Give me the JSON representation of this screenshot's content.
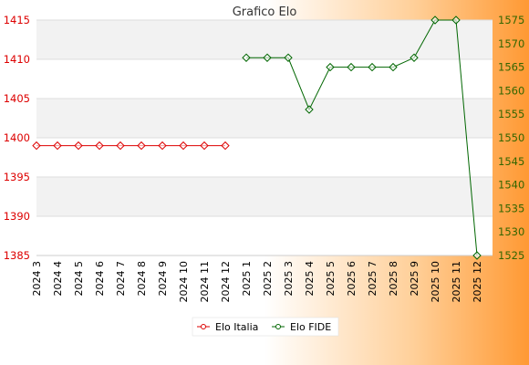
{
  "chart_data": {
    "type": "line",
    "title": "Grafico Elo",
    "categories": [
      "2024 3",
      "2024 4",
      "2024 5",
      "2024 6",
      "2024 7",
      "2024 8",
      "2024 9",
      "2024 10",
      "2024 11",
      "2024 12",
      "2025 1",
      "2025 2",
      "2025 3",
      "2025 4",
      "2025 5",
      "2025 6",
      "2025 7",
      "2025 8",
      "2025 9",
      "2025 10",
      "2025 11",
      "2025 12"
    ],
    "left_axis": {
      "min": 1385,
      "max": 1415,
      "ticks": [
        "1385",
        "1390",
        "1395",
        "1400",
        "1405",
        "1410",
        "1415"
      ],
      "color": "#dd0000"
    },
    "right_axis": {
      "min": 1525,
      "max": 1575,
      "ticks": [
        "1525",
        "1530",
        "1535",
        "1540",
        "1545",
        "1550",
        "1555",
        "1560",
        "1565",
        "1570",
        "1575"
      ],
      "color": "#336600"
    },
    "grid": true,
    "legend_placement": "bottom-center",
    "series": [
      {
        "name": "Elo Italia",
        "axis": "left",
        "color": "#dd0000",
        "values": [
          1399,
          1399,
          1399,
          1399,
          1399,
          1399,
          1399,
          1399,
          1399,
          1399,
          null,
          null,
          null,
          null,
          null,
          null,
          null,
          null,
          null,
          null,
          null,
          null
        ]
      },
      {
        "name": "Elo FIDE",
        "axis": "right",
        "color": "#006600",
        "values": [
          null,
          null,
          null,
          null,
          null,
          null,
          null,
          null,
          null,
          null,
          1567,
          1567,
          1567,
          1556,
          1565,
          1565,
          1565,
          1565,
          1567,
          1575,
          1575,
          1525
        ]
      }
    ]
  }
}
